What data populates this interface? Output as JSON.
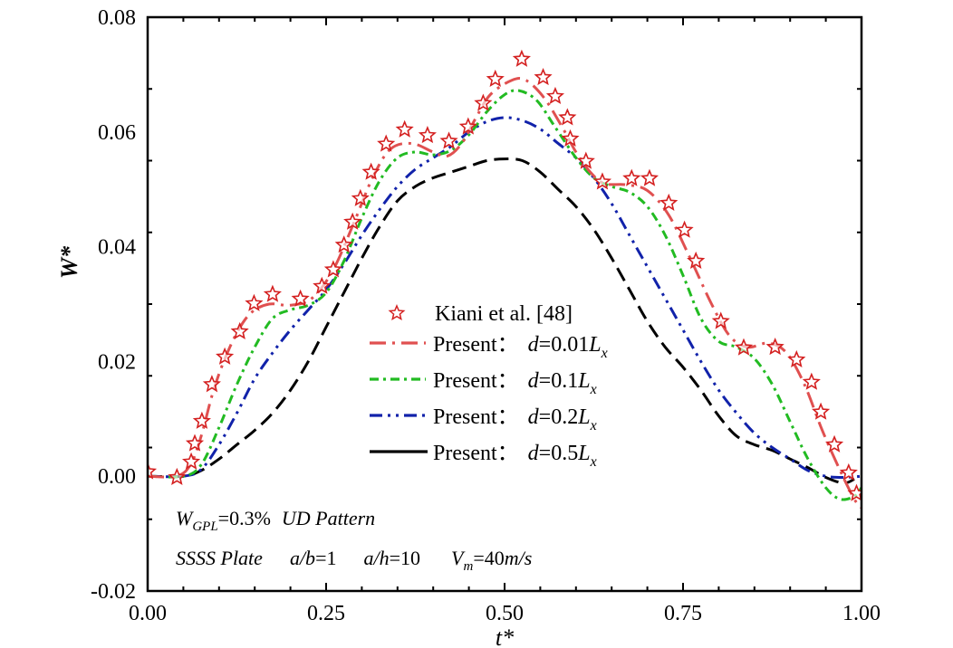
{
  "chart_data": {
    "type": "line",
    "title": "",
    "xlabel": "t*",
    "ylabel": "W*",
    "xlim": [
      0.0,
      1.0
    ],
    "ylim": [
      -0.02,
      0.08
    ],
    "xticks": [
      0.0,
      0.25,
      0.5,
      0.75,
      1.0
    ],
    "xtick_labels": [
      "0.00",
      "0.25",
      "0.50",
      "0.75",
      "1.00"
    ],
    "x_minor_step": 0.05,
    "yticks": [
      -0.02,
      0.0,
      0.02,
      0.04,
      0.06,
      0.08
    ],
    "ytick_labels": [
      "-0.02",
      "0.00",
      "0.02",
      "0.04",
      "0.06",
      "0.08"
    ],
    "y_minor_step": 0.005,
    "grid": false,
    "legend_position": "center",
    "series": [
      {
        "name": "Kiani et al. [48]",
        "kind": "scatter",
        "marker": "star",
        "color": "#d42020",
        "points": [
          [
            0.0,
            0.0008
          ],
          [
            0.041,
            -0.0002
          ],
          [
            0.061,
            0.0025
          ],
          [
            0.066,
            0.0057
          ],
          [
            0.076,
            0.0096
          ],
          [
            0.09,
            0.016
          ],
          [
            0.108,
            0.0208
          ],
          [
            0.129,
            0.0252
          ],
          [
            0.149,
            0.0301
          ],
          [
            0.175,
            0.0317
          ],
          [
            0.214,
            0.0309
          ],
          [
            0.244,
            0.0331
          ],
          [
            0.26,
            0.036
          ],
          [
            0.275,
            0.0403
          ],
          [
            0.287,
            0.0443
          ],
          [
            0.298,
            0.0484
          ],
          [
            0.313,
            0.053
          ],
          [
            0.334,
            0.0579
          ],
          [
            0.36,
            0.0604
          ],
          [
            0.392,
            0.0594
          ],
          [
            0.422,
            0.0584
          ],
          [
            0.449,
            0.0609
          ],
          [
            0.47,
            0.065
          ],
          [
            0.487,
            0.0692
          ],
          [
            0.524,
            0.0727
          ],
          [
            0.554,
            0.0695
          ],
          [
            0.571,
            0.0662
          ],
          [
            0.588,
            0.0625
          ],
          [
            0.592,
            0.0588
          ],
          [
            0.614,
            0.0549
          ],
          [
            0.637,
            0.0513
          ],
          [
            0.678,
            0.0519
          ],
          [
            0.703,
            0.0519
          ],
          [
            0.73,
            0.0476
          ],
          [
            0.752,
            0.0429
          ],
          [
            0.768,
            0.0375
          ],
          [
            0.803,
            0.027
          ],
          [
            0.835,
            0.0224
          ],
          [
            0.879,
            0.0225
          ],
          [
            0.909,
            0.0203
          ],
          [
            0.93,
            0.0164
          ],
          [
            0.943,
            0.0112
          ],
          [
            0.962,
            0.0055
          ],
          [
            0.982,
            0.0006
          ],
          [
            0.993,
            -0.003
          ]
        ]
      },
      {
        "name": "Present: d=0.01Lx",
        "kind": "line",
        "dash": "dash-dot",
        "color": "#e05050",
        "points": [
          [
            0.0,
            0.0
          ],
          [
            0.04,
            0.0
          ],
          [
            0.06,
            0.002
          ],
          [
            0.075,
            0.007
          ],
          [
            0.09,
            0.014
          ],
          [
            0.105,
            0.0195
          ],
          [
            0.125,
            0.025
          ],
          [
            0.145,
            0.0285
          ],
          [
            0.17,
            0.03
          ],
          [
            0.2,
            0.0298
          ],
          [
            0.23,
            0.031
          ],
          [
            0.26,
            0.036
          ],
          [
            0.29,
            0.0445
          ],
          [
            0.315,
            0.052
          ],
          [
            0.34,
            0.057
          ],
          [
            0.37,
            0.058
          ],
          [
            0.4,
            0.0565
          ],
          [
            0.42,
            0.0558
          ],
          [
            0.44,
            0.058
          ],
          [
            0.46,
            0.0625
          ],
          [
            0.48,
            0.0665
          ],
          [
            0.51,
            0.069
          ],
          [
            0.53,
            0.069
          ],
          [
            0.555,
            0.066
          ],
          [
            0.58,
            0.061
          ],
          [
            0.6,
            0.0565
          ],
          [
            0.62,
            0.053
          ],
          [
            0.64,
            0.051
          ],
          [
            0.67,
            0.0508
          ],
          [
            0.7,
            0.0498
          ],
          [
            0.73,
            0.0455
          ],
          [
            0.76,
            0.038
          ],
          [
            0.79,
            0.03
          ],
          [
            0.815,
            0.0245
          ],
          [
            0.84,
            0.0225
          ],
          [
            0.87,
            0.0232
          ],
          [
            0.895,
            0.0215
          ],
          [
            0.92,
            0.016
          ],
          [
            0.945,
            0.008
          ],
          [
            0.97,
            0.001
          ],
          [
            0.99,
            -0.004
          ],
          [
            1.0,
            -0.0055
          ]
        ]
      },
      {
        "name": "Present: d=0.1Lx",
        "kind": "line",
        "dash": "dash-dot",
        "color": "#22bb22",
        "points": [
          [
            0.0,
            0.0
          ],
          [
            0.05,
            0.0
          ],
          [
            0.075,
            0.002
          ],
          [
            0.1,
            0.0085
          ],
          [
            0.125,
            0.016
          ],
          [
            0.15,
            0.0225
          ],
          [
            0.175,
            0.0275
          ],
          [
            0.2,
            0.029
          ],
          [
            0.225,
            0.0298
          ],
          [
            0.25,
            0.032
          ],
          [
            0.275,
            0.0375
          ],
          [
            0.3,
            0.045
          ],
          [
            0.325,
            0.0515
          ],
          [
            0.35,
            0.0555
          ],
          [
            0.375,
            0.0565
          ],
          [
            0.4,
            0.056
          ],
          [
            0.425,
            0.0568
          ],
          [
            0.45,
            0.0595
          ],
          [
            0.475,
            0.0635
          ],
          [
            0.5,
            0.0665
          ],
          [
            0.52,
            0.0672
          ],
          [
            0.545,
            0.0655
          ],
          [
            0.57,
            0.061
          ],
          [
            0.6,
            0.0555
          ],
          [
            0.625,
            0.052
          ],
          [
            0.65,
            0.0505
          ],
          [
            0.675,
            0.0495
          ],
          [
            0.7,
            0.047
          ],
          [
            0.725,
            0.042
          ],
          [
            0.75,
            0.035
          ],
          [
            0.775,
            0.0275
          ],
          [
            0.8,
            0.0235
          ],
          [
            0.825,
            0.0225
          ],
          [
            0.85,
            0.0205
          ],
          [
            0.875,
            0.016
          ],
          [
            0.9,
            0.0095
          ],
          [
            0.925,
            0.003
          ],
          [
            0.95,
            -0.002
          ],
          [
            0.97,
            -0.004
          ],
          [
            0.99,
            -0.0035
          ],
          [
            1.0,
            -0.002
          ]
        ]
      },
      {
        "name": "Present: d=0.2Lx",
        "kind": "line",
        "dash": "dash-dot-dot",
        "color": "#1122aa",
        "points": [
          [
            0.0,
            0.0
          ],
          [
            0.05,
            0.0
          ],
          [
            0.075,
            0.0012
          ],
          [
            0.1,
            0.0055
          ],
          [
            0.125,
            0.011
          ],
          [
            0.15,
            0.017
          ],
          [
            0.175,
            0.0215
          ],
          [
            0.2,
            0.0255
          ],
          [
            0.225,
            0.029
          ],
          [
            0.25,
            0.0325
          ],
          [
            0.275,
            0.037
          ],
          [
            0.3,
            0.042
          ],
          [
            0.325,
            0.0465
          ],
          [
            0.35,
            0.0505
          ],
          [
            0.375,
            0.0535
          ],
          [
            0.4,
            0.0555
          ],
          [
            0.425,
            0.0575
          ],
          [
            0.45,
            0.06
          ],
          [
            0.475,
            0.0618
          ],
          [
            0.5,
            0.0625
          ],
          [
            0.525,
            0.062
          ],
          [
            0.55,
            0.0605
          ],
          [
            0.575,
            0.058
          ],
          [
            0.6,
            0.0555
          ],
          [
            0.625,
            0.052
          ],
          [
            0.65,
            0.0475
          ],
          [
            0.675,
            0.042
          ],
          [
            0.7,
            0.0365
          ],
          [
            0.725,
            0.031
          ],
          [
            0.75,
            0.0255
          ],
          [
            0.775,
            0.02
          ],
          [
            0.8,
            0.015
          ],
          [
            0.825,
            0.011
          ],
          [
            0.85,
            0.0075
          ],
          [
            0.875,
            0.005
          ],
          [
            0.9,
            0.003
          ],
          [
            0.925,
            0.001
          ],
          [
            0.95,
            0.0
          ],
          [
            0.975,
            -0.0002
          ],
          [
            1.0,
            0.0
          ]
        ]
      },
      {
        "name": "Present: d=0.5Lx",
        "kind": "line",
        "dash": "dash",
        "color": "#000000",
        "points": [
          [
            0.0,
            0.0
          ],
          [
            0.05,
            0.0
          ],
          [
            0.075,
            0.001
          ],
          [
            0.1,
            0.003
          ],
          [
            0.125,
            0.0055
          ],
          [
            0.15,
            0.008
          ],
          [
            0.175,
            0.011
          ],
          [
            0.2,
            0.015
          ],
          [
            0.225,
            0.02
          ],
          [
            0.25,
            0.026
          ],
          [
            0.275,
            0.032
          ],
          [
            0.3,
            0.038
          ],
          [
            0.325,
            0.0435
          ],
          [
            0.35,
            0.048
          ],
          [
            0.375,
            0.0505
          ],
          [
            0.4,
            0.052
          ],
          [
            0.425,
            0.053
          ],
          [
            0.45,
            0.054
          ],
          [
            0.475,
            0.055
          ],
          [
            0.5,
            0.0553
          ],
          [
            0.525,
            0.055
          ],
          [
            0.55,
            0.053
          ],
          [
            0.575,
            0.05
          ],
          [
            0.6,
            0.047
          ],
          [
            0.625,
            0.043
          ],
          [
            0.65,
            0.038
          ],
          [
            0.675,
            0.0325
          ],
          [
            0.7,
            0.027
          ],
          [
            0.725,
            0.0225
          ],
          [
            0.75,
            0.019
          ],
          [
            0.775,
            0.015
          ],
          [
            0.8,
            0.0105
          ],
          [
            0.825,
            0.007
          ],
          [
            0.85,
            0.0055
          ],
          [
            0.875,
            0.0045
          ],
          [
            0.9,
            0.003
          ],
          [
            0.925,
            0.0015
          ],
          [
            0.95,
            -0.0002
          ],
          [
            0.975,
            -0.0012
          ],
          [
            0.99,
            -0.0005
          ]
        ]
      }
    ],
    "legend": {
      "entries": [
        {
          "prefix": "Kiani et al. [48]",
          "d_symbol": "",
          "value": "",
          "L": "",
          "sub": ""
        },
        {
          "prefix": "Present：",
          "d_symbol": "d",
          "value": "=0.01",
          "L": "L",
          "sub": "x"
        },
        {
          "prefix": "Present：",
          "d_symbol": "d",
          "value": "=0.1",
          "L": "L",
          "sub": "x"
        },
        {
          "prefix": "Present：",
          "d_symbol": "d",
          "value": "=0.2",
          "L": "L",
          "sub": "x"
        },
        {
          "prefix": "Present：",
          "d_symbol": "d",
          "value": "=0.5",
          "L": "L",
          "sub": "x"
        }
      ]
    },
    "annotations": {
      "line1": {
        "w": "W",
        "w_sub": "GPL",
        "value": "=0.3%",
        "pattern": "UD Pattern"
      },
      "line2": {
        "plate": "SSSS Plate",
        "ab_var": "a/b",
        "ab_val": "=1",
        "ah_var": "a/h",
        "ah_val": "=10",
        "vm_var": "V",
        "vm_sub": "m",
        "vm_val": "=40",
        "vm_unit": "m/s"
      }
    }
  }
}
